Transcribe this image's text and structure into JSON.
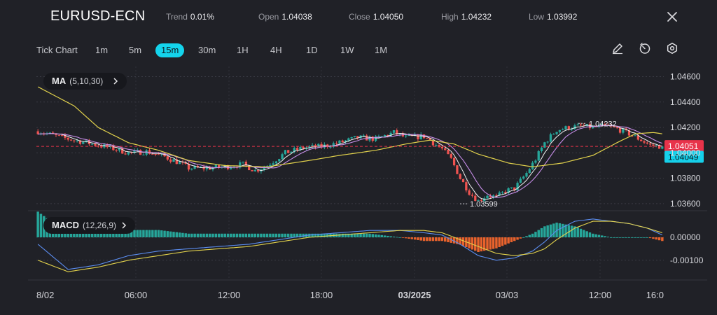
{
  "header": {
    "symbol": "EURUSD-ECN",
    "stats": [
      {
        "label": "Trend",
        "value": "0.01%"
      },
      {
        "label": "Open",
        "value": "1.04038"
      },
      {
        "label": "Close",
        "value": "1.04050"
      },
      {
        "label": "High",
        "value": "1.04232"
      },
      {
        "label": "Low",
        "value": "1.03992"
      }
    ],
    "close_icon": "close-icon"
  },
  "timeframes": [
    "Tick Chart",
    "1m",
    "5m",
    "15m",
    "30m",
    "1H",
    "4H",
    "1D",
    "1W",
    "1M"
  ],
  "active_timeframe": "15m",
  "toolbar_icons": [
    "pencil-icon",
    "timer-icon",
    "settings-icon"
  ],
  "ma_indicator": {
    "name": "MA",
    "params": "(5,10,30)"
  },
  "macd_indicator": {
    "name": "MACD",
    "params": "(12,26,9)"
  },
  "colors": {
    "background": "#202127",
    "bull": "#26a69a",
    "bear": "#ef5350",
    "ma5": "#f2f2f2",
    "ma10": "#c78ee8",
    "ma30": "#e2d24c",
    "macd_line": "#5b8def",
    "signal_line": "#e2d24c",
    "last_price_bg": "#e8334a",
    "bid_price_bg": "#16d0ea",
    "active_tab": "#14d4ec"
  },
  "chart_data": [
    {
      "type": "candlestick",
      "yaxis_ticks": [
        "1.04600",
        "1.04400",
        "1.04200",
        "1.04000",
        "1.03800",
        "1.03600"
      ],
      "ylim": [
        1.0355,
        1.0468
      ],
      "xaxis_ticks": [
        "8/02",
        "06:00",
        "12:00",
        "18:00",
        "03/2025",
        "03/03",
        "12:00",
        "16:0"
      ],
      "high_annotation": {
        "price": "1.04232"
      },
      "low_annotation": {
        "price": "1.03599"
      },
      "last_price": "1.04051",
      "bid_price": "1.04049",
      "close_path": [
        [
          0,
          1.0417
        ],
        [
          8,
          1.0412
        ],
        [
          16,
          1.0408
        ],
        [
          24,
          1.0404
        ],
        [
          30,
          1.04
        ],
        [
          36,
          1.0401
        ],
        [
          42,
          1.0397
        ],
        [
          47,
          1.0392
        ],
        [
          50,
          1.0388
        ],
        [
          56,
          1.0388
        ],
        [
          62,
          1.0389
        ],
        [
          68,
          1.0391
        ],
        [
          72,
          1.0386
        ],
        [
          76,
          1.039
        ],
        [
          82,
          1.04
        ],
        [
          88,
          1.0404
        ],
        [
          94,
          1.0405
        ],
        [
          100,
          1.0408
        ],
        [
          106,
          1.0412
        ],
        [
          112,
          1.0411
        ],
        [
          118,
          1.0416
        ],
        [
          122,
          1.0412
        ],
        [
          128,
          1.0413
        ],
        [
          134,
          1.0403
        ],
        [
          137,
          1.0395
        ],
        [
          140,
          1.038
        ],
        [
          143,
          1.0369
        ],
        [
          146,
          1.0362
        ],
        [
          149,
          1.0367
        ],
        [
          152,
          1.0365
        ],
        [
          155,
          1.037
        ],
        [
          158,
          1.0372
        ],
        [
          162,
          1.0384
        ],
        [
          165,
          1.0395
        ],
        [
          168,
          1.0408
        ],
        [
          172,
          1.0418
        ],
        [
          176,
          1.042
        ],
        [
          180,
          1.0421
        ],
        [
          184,
          1.042
        ],
        [
          188,
          1.0421
        ],
        [
          192,
          1.0419
        ],
        [
          196,
          1.0415
        ],
        [
          200,
          1.041
        ],
        [
          203,
          1.0406
        ],
        [
          207,
          1.0405
        ]
      ],
      "moving_average_path": [
        [
          0,
          1.0452
        ],
        [
          12,
          1.0437
        ],
        [
          20,
          1.042
        ],
        [
          30,
          1.0408
        ],
        [
          40,
          1.0402
        ],
        [
          50,
          1.0394
        ],
        [
          62,
          1.039
        ],
        [
          76,
          1.0389
        ],
        [
          90,
          1.0394
        ],
        [
          100,
          1.0398
        ],
        [
          112,
          1.0402
        ],
        [
          122,
          1.0407
        ],
        [
          130,
          1.041
        ],
        [
          138,
          1.0407
        ],
        [
          146,
          1.0399
        ],
        [
          156,
          1.0392
        ],
        [
          164,
          1.0389
        ],
        [
          174,
          1.0392
        ],
        [
          184,
          1.0398
        ],
        [
          192,
          1.0408
        ],
        [
          198,
          1.0415
        ],
        [
          204,
          1.0416
        ],
        [
          207,
          1.0415
        ]
      ]
    },
    {
      "type": "macd",
      "yaxis_ticks": [
        "0.00000",
        "-0.00100"
      ],
      "ylim": [
        -0.0018,
        0.0011
      ],
      "macd_line": [
        [
          0,
          -0.0003
        ],
        [
          10,
          -0.0014
        ],
        [
          20,
          -0.0012
        ],
        [
          30,
          -0.0008
        ],
        [
          40,
          -0.0006
        ],
        [
          50,
          -0.0005
        ],
        [
          60,
          -0.0004
        ],
        [
          70,
          -0.0003
        ],
        [
          80,
          -0.0001
        ],
        [
          90,
          0.0001
        ],
        [
          100,
          0.0002
        ],
        [
          110,
          0.0003
        ],
        [
          120,
          0.0003
        ],
        [
          128,
          0.0002
        ],
        [
          134,
          0.0001
        ],
        [
          140,
          -0.0003
        ],
        [
          146,
          -0.0008
        ],
        [
          152,
          -0.001
        ],
        [
          158,
          -0.0009
        ],
        [
          164,
          -0.0006
        ],
        [
          168,
          -0.0002
        ],
        [
          172,
          0.0003
        ],
        [
          178,
          0.0007
        ],
        [
          184,
          0.0008
        ],
        [
          190,
          0.0007
        ],
        [
          196,
          0.0006
        ],
        [
          202,
          0.0004
        ],
        [
          207,
          0.0001
        ]
      ],
      "signal_line": [
        [
          0,
          -0.001
        ],
        [
          10,
          -0.0015
        ],
        [
          20,
          -0.0013
        ],
        [
          30,
          -0.001
        ],
        [
          40,
          -0.0008
        ],
        [
          50,
          -0.0006
        ],
        [
          60,
          -0.0005
        ],
        [
          70,
          -0.0004
        ],
        [
          80,
          -0.0002
        ],
        [
          90,
          0.0
        ],
        [
          100,
          0.0001
        ],
        [
          110,
          0.0002
        ],
        [
          120,
          0.0003
        ],
        [
          128,
          0.0003
        ],
        [
          134,
          0.0002
        ],
        [
          140,
          -0.0001
        ],
        [
          146,
          -0.0004
        ],
        [
          152,
          -0.0007
        ],
        [
          158,
          -0.0008
        ],
        [
          164,
          -0.0007
        ],
        [
          168,
          -0.0005
        ],
        [
          172,
          -0.0001
        ],
        [
          178,
          0.0004
        ],
        [
          184,
          0.0007
        ],
        [
          190,
          0.0007
        ],
        [
          196,
          0.0006
        ],
        [
          202,
          0.0004
        ],
        [
          207,
          0.0002
        ]
      ]
    }
  ]
}
